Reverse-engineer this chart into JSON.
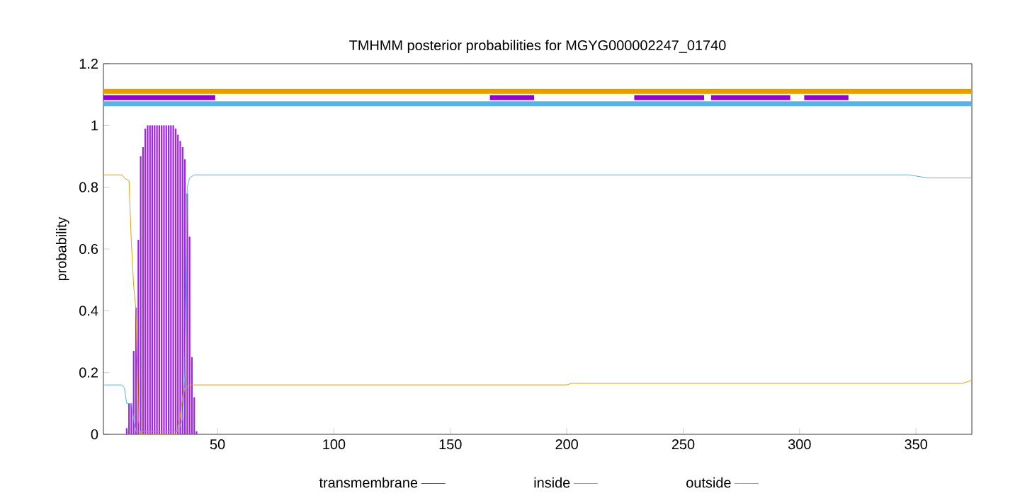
{
  "chart_data": {
    "type": "line",
    "title": "TMHMM posterior probabilities for MGYG000002247_01740",
    "ylabel": "probability",
    "xlim": [
      1,
      374
    ],
    "ylim": [
      0,
      1.2
    ],
    "xticks": [
      50,
      100,
      150,
      200,
      250,
      300,
      350
    ],
    "yticks": [
      0,
      0.2,
      0.4,
      0.6,
      0.8,
      1,
      1.2
    ],
    "legend": "bottom",
    "grid": false,
    "series": [
      {
        "name": "transmembrane",
        "type": "bar",
        "color": "#a020f0",
        "x": [
          11,
          12,
          13,
          14,
          15,
          16,
          17,
          18,
          19,
          20,
          21,
          22,
          23,
          24,
          25,
          26,
          27,
          28,
          29,
          30,
          31,
          32,
          33,
          34,
          35,
          36,
          37,
          38,
          39,
          40,
          41
        ],
        "values": [
          0.02,
          0.1,
          0.1,
          0.27,
          0.41,
          0.63,
          0.9,
          0.93,
          0.99,
          1,
          1,
          1,
          1,
          1,
          1,
          1,
          1,
          1,
          1,
          1,
          1,
          0.99,
          0.97,
          0.95,
          0.93,
          0.89,
          0.78,
          0.64,
          0.25,
          0.12,
          0.01
        ]
      },
      {
        "name": "inside",
        "type": "line",
        "color": "#56b4e9",
        "x": [
          1,
          9,
          10,
          11,
          13,
          14,
          15,
          33,
          34,
          35,
          36,
          37,
          38,
          40,
          347,
          355,
          374
        ],
        "values": [
          0.16,
          0.16,
          0.15,
          0.1,
          0.1,
          0.05,
          0.01,
          0.01,
          0.03,
          0.05,
          0.2,
          0.8,
          0.83,
          0.84,
          0.84,
          0.83,
          0.83
        ]
      },
      {
        "name": "outside",
        "type": "line",
        "color": "#e69f00",
        "x": [
          1,
          9,
          10,
          12,
          13,
          14,
          15,
          16,
          17,
          32,
          33,
          34,
          35,
          36,
          38,
          200,
          202,
          370,
          374
        ],
        "values": [
          0.84,
          0.84,
          0.83,
          0.82,
          0.62,
          0.48,
          0.4,
          0.05,
          0,
          0,
          0.02,
          0.06,
          0.12,
          0.15,
          0.16,
          0.16,
          0.165,
          0.165,
          0.175
        ]
      },
      {
        "color": "#e69f00",
        "x": [
          1,
          374
        ],
        "values": [
          1.11,
          1.11
        ]
      },
      {
        "color": "#56b4e9",
        "x": [
          1,
          374
        ],
        "values": [
          1.07,
          1.07
        ]
      },
      {
        "color": "#9400d3",
        "x": [
          1,
          49,
          50,
          167,
          186,
          187,
          229,
          259,
          260,
          262,
          296,
          297,
          302,
          321
        ],
        "values": [
          1.09,
          1.09,
          null,
          1.09,
          1.09,
          null,
          1.09,
          1.09,
          null,
          1.09,
          1.09,
          null,
          1.09,
          1.09
        ]
      }
    ]
  }
}
